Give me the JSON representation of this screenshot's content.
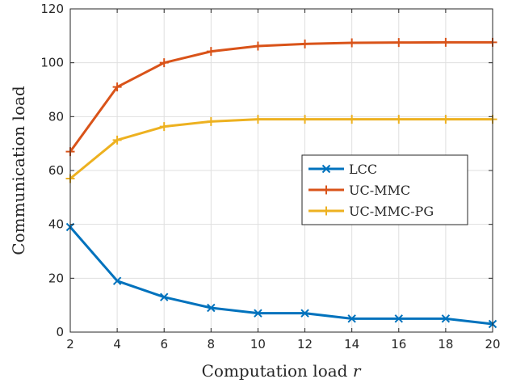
{
  "chart_data": {
    "type": "line",
    "xlabel": "Computation load r",
    "ylabel": "Communication load",
    "xlim": [
      2,
      20
    ],
    "ylim": [
      0,
      120
    ],
    "x": [
      2,
      4,
      6,
      8,
      10,
      12,
      14,
      16,
      18,
      20
    ],
    "xticks": [
      2,
      4,
      6,
      8,
      10,
      12,
      14,
      16,
      18,
      20
    ],
    "yticks": [
      0,
      20,
      40,
      60,
      80,
      100,
      120
    ],
    "grid": true,
    "legend_position": "center-right",
    "series": [
      {
        "name": "LCC",
        "color": "#0072bd",
        "marker": "x",
        "values": [
          39,
          19,
          13,
          9,
          7,
          7,
          5,
          5,
          5,
          3
        ]
      },
      {
        "name": "UC-MMC",
        "color": "#d95319",
        "marker": "+",
        "values": [
          67,
          91,
          100,
          104.2,
          106.2,
          107,
          107.4,
          107.5,
          107.6,
          107.6
        ]
      },
      {
        "name": "UC-MMC-PG",
        "color": "#edb120",
        "marker": "+",
        "values": [
          57,
          71.3,
          76.3,
          78.2,
          79,
          79,
          79,
          79,
          79,
          79
        ]
      }
    ]
  }
}
